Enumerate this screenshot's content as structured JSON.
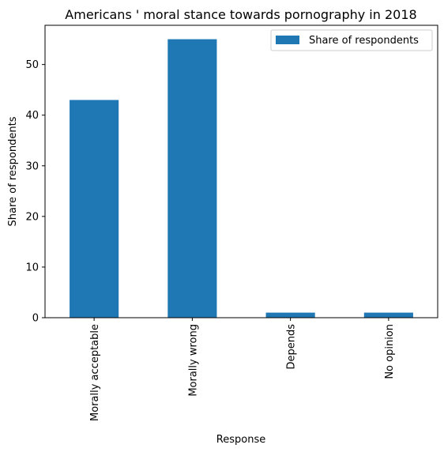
{
  "chart_data": {
    "type": "bar",
    "title": "Americans ' moral stance towards pornography in 2018",
    "xlabel": "Response",
    "ylabel": "Share of respondents",
    "categories": [
      "Morally acceptable",
      "Morally wrong",
      "Depends",
      "No opinion"
    ],
    "series": [
      {
        "name": "Share of respondents",
        "values": [
          43,
          55,
          1,
          1
        ],
        "color": "#1f77b4"
      }
    ],
    "ylim": [
      0,
      57.75
    ],
    "yticks": [
      0,
      10,
      20,
      30,
      40,
      50
    ],
    "legend_position": "top-right",
    "grid": false
  }
}
